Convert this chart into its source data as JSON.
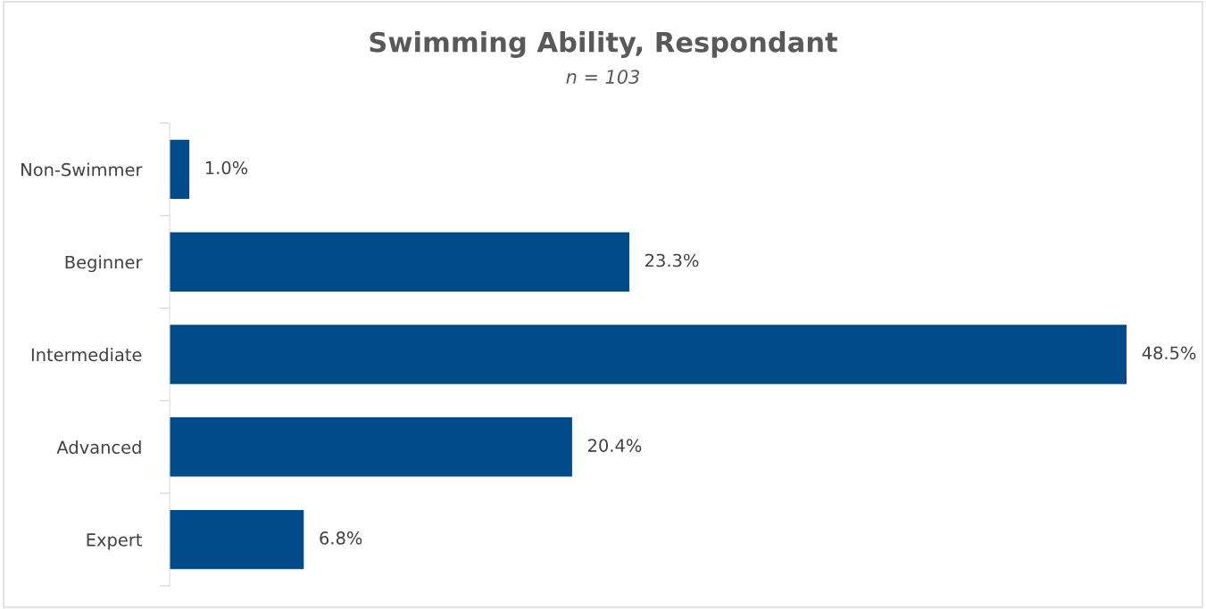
{
  "chart_data": {
    "type": "bar",
    "orientation": "horizontal",
    "title": "Swimming Ability, Respondant",
    "subtitle": "n = 103",
    "categories": [
      "Non-Swimmer",
      "Beginner",
      "Intermediate",
      "Advanced",
      "Expert"
    ],
    "values": [
      1.0,
      23.3,
      48.5,
      20.4,
      6.8
    ],
    "value_labels": [
      "1.0%",
      "23.3%",
      "48.5%",
      "20.4%",
      "6.8%"
    ],
    "color": "#004b87",
    "grid": false,
    "legend": false
  }
}
